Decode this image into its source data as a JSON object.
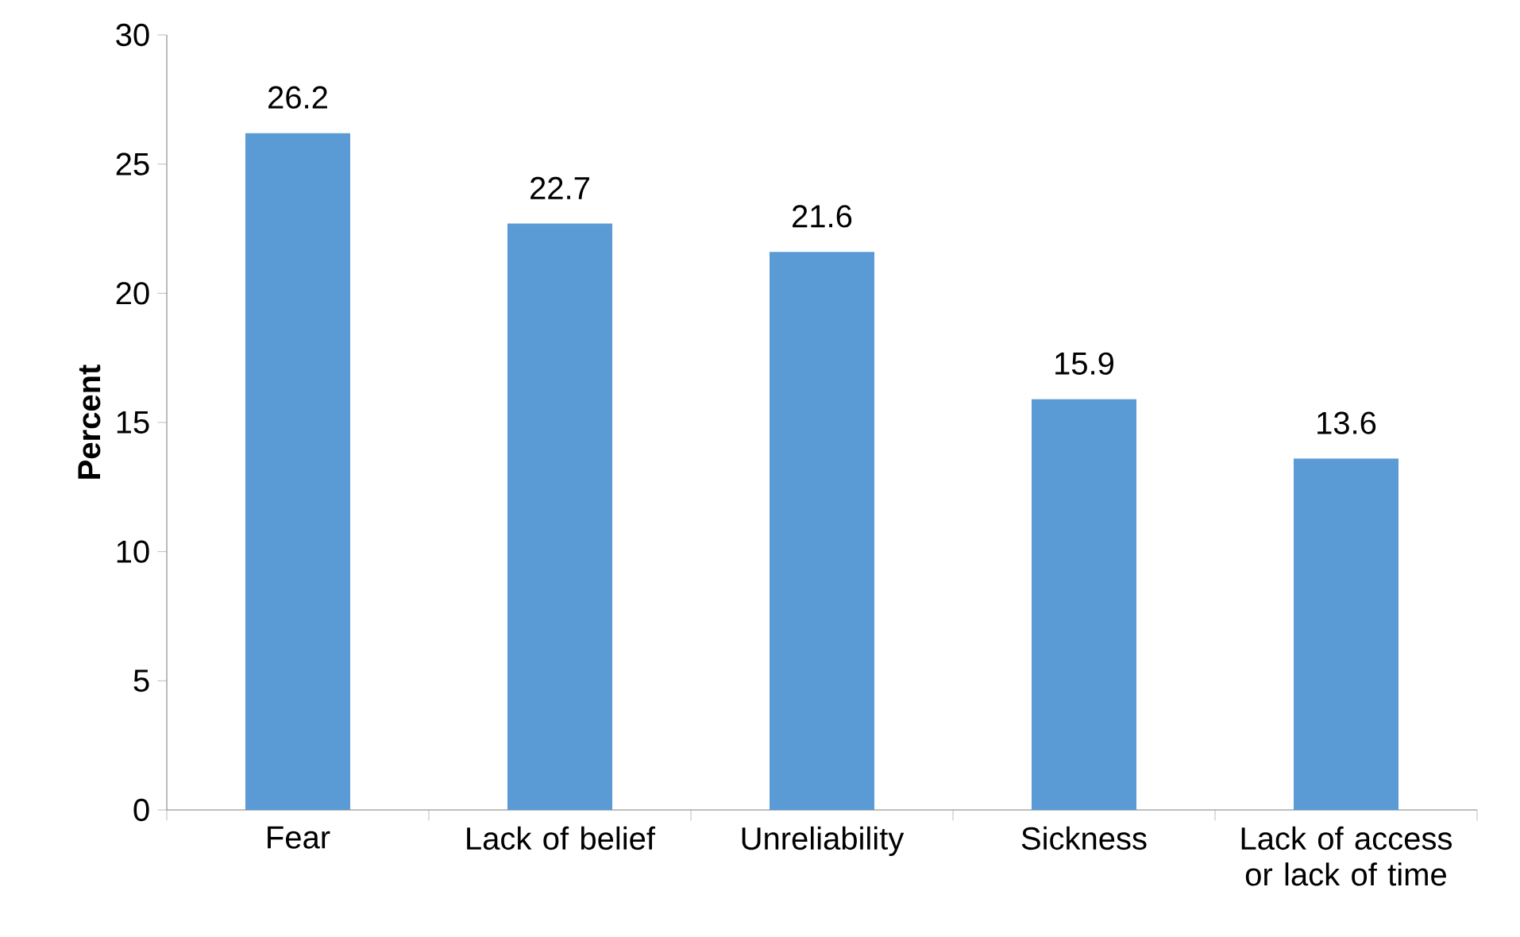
{
  "chart_data": {
    "type": "bar",
    "ylabel": "Percent",
    "categories": [
      "Fear",
      "Lack of belief",
      "Unreliability",
      "Sickness",
      "Lack of access or lack of time"
    ],
    "values": [
      26.2,
      22.7,
      21.6,
      15.9,
      13.6
    ],
    "color": "#5b9bd5",
    "ylim": [
      0,
      30
    ],
    "yticks": [
      0,
      5,
      10,
      15,
      20,
      25,
      30
    ],
    "data_labels": true
  }
}
